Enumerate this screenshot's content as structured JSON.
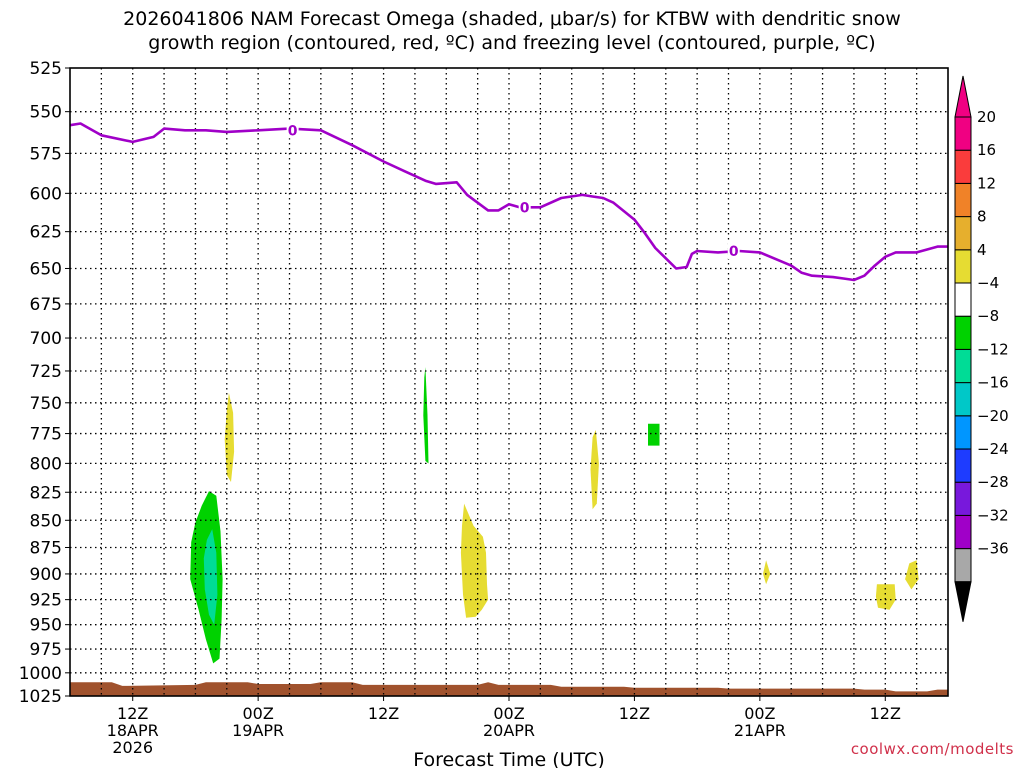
{
  "title_line1": "2026041806 NAM Forecast Omega (shaded, μbar/s) for KTBW with dendritic snow",
  "title_line2": "growth region (contoured, red, ºC) and freezing level (contoured, purple, ºC)",
  "watermark": "coolwx.com/modelts",
  "chart_data": {
    "type": "contour",
    "title": "2026041806 NAM Forecast Omega (shaded, μbar/s) for KTBW with dendritic snow growth region (contoured, red, ºC) and freezing level (contoured, purple, ºC)",
    "xlabel": "Forecast Time (UTC)",
    "ylabel": "",
    "x_unit": "forecast hour",
    "xlim": [
      0,
      84
    ],
    "ylim": [
      525,
      1025
    ],
    "y_inverted": true,
    "y_scale": "pressure (log)",
    "y_ticks": [
      525,
      550,
      575,
      600,
      625,
      650,
      675,
      700,
      725,
      750,
      775,
      800,
      825,
      850,
      875,
      900,
      925,
      950,
      975,
      1000,
      1025
    ],
    "x_ticks": [
      {
        "hour": 6,
        "label": "12Z",
        "sub1": "18APR",
        "sub2": "2026"
      },
      {
        "hour": 18,
        "label": "00Z",
        "sub1": "19APR",
        "sub2": ""
      },
      {
        "hour": 30,
        "label": "12Z",
        "sub1": "",
        "sub2": ""
      },
      {
        "hour": 42,
        "label": "00Z",
        "sub1": "20APR",
        "sub2": ""
      },
      {
        "hour": 54,
        "label": "12Z",
        "sub1": "",
        "sub2": ""
      },
      {
        "hour": 66,
        "label": "00Z",
        "sub1": "21APR",
        "sub2": ""
      },
      {
        "hour": 78,
        "label": "12Z",
        "sub1": "",
        "sub2": ""
      }
    ],
    "grid": true,
    "freezing_level": {
      "label": "0",
      "color": "#a000c8",
      "points": [
        [
          0,
          558
        ],
        [
          1,
          557
        ],
        [
          3,
          564
        ],
        [
          6,
          568
        ],
        [
          8,
          565
        ],
        [
          9,
          560
        ],
        [
          11,
          561
        ],
        [
          13,
          561
        ],
        [
          15,
          562
        ],
        [
          18,
          561
        ],
        [
          21,
          560
        ],
        [
          24,
          561
        ],
        [
          27,
          570
        ],
        [
          30,
          580
        ],
        [
          32,
          586
        ],
        [
          34,
          592
        ],
        [
          35,
          594
        ],
        [
          37,
          593
        ],
        [
          38,
          601
        ],
        [
          40,
          611
        ],
        [
          41,
          611
        ],
        [
          42,
          607
        ],
        [
          43,
          609
        ],
        [
          45,
          609
        ],
        [
          47,
          603
        ],
        [
          49,
          601
        ],
        [
          50,
          602
        ],
        [
          51,
          603
        ],
        [
          52,
          606
        ],
        [
          54,
          617
        ],
        [
          55,
          626
        ],
        [
          56,
          636
        ],
        [
          57,
          643
        ],
        [
          58,
          650
        ],
        [
          59,
          649
        ],
        [
          59.5,
          640
        ],
        [
          60,
          638
        ],
        [
          62,
          639
        ],
        [
          64,
          638
        ],
        [
          66,
          639
        ],
        [
          68,
          645
        ],
        [
          69,
          648
        ],
        [
          70,
          653
        ],
        [
          71,
          655
        ],
        [
          73,
          656
        ],
        [
          74,
          657
        ],
        [
          75,
          658
        ],
        [
          76,
          655
        ],
        [
          77,
          648
        ],
        [
          78,
          642
        ],
        [
          79,
          639
        ],
        [
          81,
          639
        ],
        [
          82,
          637
        ],
        [
          83,
          635
        ],
        [
          84,
          635
        ]
      ]
    },
    "omega_levels": [
      -36,
      -32,
      -28,
      -24,
      -20,
      -16,
      -12,
      -8,
      -4,
      4,
      8,
      12,
      16,
      20
    ],
    "colorbar_colors": [
      "#a8a8a8",
      "#a000c8",
      "#7818dc",
      "#1e3cff",
      "#0096ff",
      "#00c8c8",
      "#00dc96",
      "#00d200",
      "#ffffff",
      "#e6dc32",
      "#e6af2d",
      "#f08228",
      "#fa3c3c",
      "#f00082"
    ],
    "colorbar_tick_labels": [
      "20",
      "16",
      "12",
      "8",
      "4",
      "−4",
      "−8",
      "−12",
      "−16",
      "−20",
      "−24",
      "−28",
      "−32",
      "−36"
    ],
    "omega_regions": [
      {
        "color": "#e6dc32",
        "value": 4,
        "points": [
          [
            15.2,
            742
          ],
          [
            15.6,
            758
          ],
          [
            15.7,
            790
          ],
          [
            15.4,
            816
          ],
          [
            15.0,
            810
          ],
          [
            14.8,
            780
          ],
          [
            15.0,
            756
          ]
        ]
      },
      {
        "color": "#00d200",
        "value": -8,
        "points": [
          [
            12.6,
            837
          ],
          [
            13.3,
            824
          ],
          [
            14.0,
            828
          ],
          [
            14.4,
            860
          ],
          [
            14.6,
            905
          ],
          [
            14.5,
            945
          ],
          [
            14.3,
            985
          ],
          [
            13.7,
            990
          ],
          [
            13.0,
            965
          ],
          [
            12.3,
            935
          ],
          [
            11.5,
            905
          ],
          [
            11.6,
            870
          ],
          [
            12.0,
            852
          ]
        ]
      },
      {
        "color": "#00dc96",
        "value": -12,
        "points": [
          [
            13.1,
            868
          ],
          [
            13.6,
            858
          ],
          [
            14.0,
            880
          ],
          [
            14.1,
            920
          ],
          [
            13.8,
            950
          ],
          [
            13.3,
            940
          ],
          [
            12.9,
            915
          ],
          [
            12.8,
            885
          ]
        ]
      },
      {
        "color": "#00d200",
        "value": -8,
        "points": [
          [
            34.0,
            722
          ],
          [
            34.2,
            760
          ],
          [
            34.3,
            800
          ],
          [
            34.0,
            798
          ],
          [
            33.8,
            760
          ],
          [
            33.9,
            730
          ]
        ]
      },
      {
        "color": "#e6dc32",
        "value": 4,
        "points": [
          [
            37.7,
            835
          ],
          [
            38.6,
            855
          ],
          [
            39.5,
            865
          ],
          [
            39.8,
            880
          ],
          [
            39.9,
            910
          ],
          [
            40.0,
            925
          ],
          [
            39.4,
            935
          ],
          [
            38.8,
            942
          ],
          [
            37.9,
            943
          ],
          [
            37.6,
            920
          ],
          [
            37.4,
            880
          ],
          [
            37.5,
            855
          ]
        ]
      },
      {
        "color": "#e6dc32",
        "value": 4,
        "points": [
          [
            50.3,
            772
          ],
          [
            50.6,
            800
          ],
          [
            50.4,
            835
          ],
          [
            50.0,
            840
          ],
          [
            49.8,
            805
          ],
          [
            50.0,
            778
          ]
        ]
      },
      {
        "color": "#00d200",
        "value": -8,
        "points": [
          [
            55.3,
            767
          ],
          [
            56.4,
            767
          ],
          [
            56.4,
            785
          ],
          [
            55.3,
            785
          ]
        ]
      },
      {
        "color": "#e6dc32",
        "value": 4,
        "points": [
          [
            66.6,
            887
          ],
          [
            67.0,
            900
          ],
          [
            66.6,
            910
          ],
          [
            66.3,
            900
          ]
        ]
      },
      {
        "color": "#e6dc32",
        "value": 4,
        "points": [
          [
            77.2,
            910
          ],
          [
            78.9,
            910
          ],
          [
            79.0,
            925
          ],
          [
            78.4,
            935
          ],
          [
            77.3,
            933
          ],
          [
            77.1,
            922
          ]
        ]
      },
      {
        "color": "#e6dc32",
        "value": 4,
        "points": [
          [
            80.3,
            890
          ],
          [
            81.0,
            887
          ],
          [
            81.2,
            905
          ],
          [
            80.5,
            915
          ],
          [
            79.9,
            905
          ]
        ]
      }
    ],
    "terrain": {
      "color": "#a0522d",
      "points": [
        [
          0,
          1010
        ],
        [
          4,
          1010
        ],
        [
          5,
          1014
        ],
        [
          12,
          1013
        ],
        [
          13,
          1010
        ],
        [
          17,
          1010
        ],
        [
          18,
          1012
        ],
        [
          23,
          1012
        ],
        [
          24,
          1010
        ],
        [
          27,
          1010
        ],
        [
          28,
          1013
        ],
        [
          39,
          1013
        ],
        [
          40,
          1010
        ],
        [
          41,
          1013
        ],
        [
          46,
          1013
        ],
        [
          47,
          1015
        ],
        [
          53,
          1015
        ],
        [
          54,
          1016
        ],
        [
          62,
          1016
        ],
        [
          63,
          1017
        ],
        [
          75,
          1017
        ],
        [
          76,
          1018
        ],
        [
          78,
          1018
        ],
        [
          79,
          1020
        ],
        [
          82,
          1020
        ],
        [
          83,
          1018
        ],
        [
          84,
          1018
        ]
      ]
    }
  }
}
